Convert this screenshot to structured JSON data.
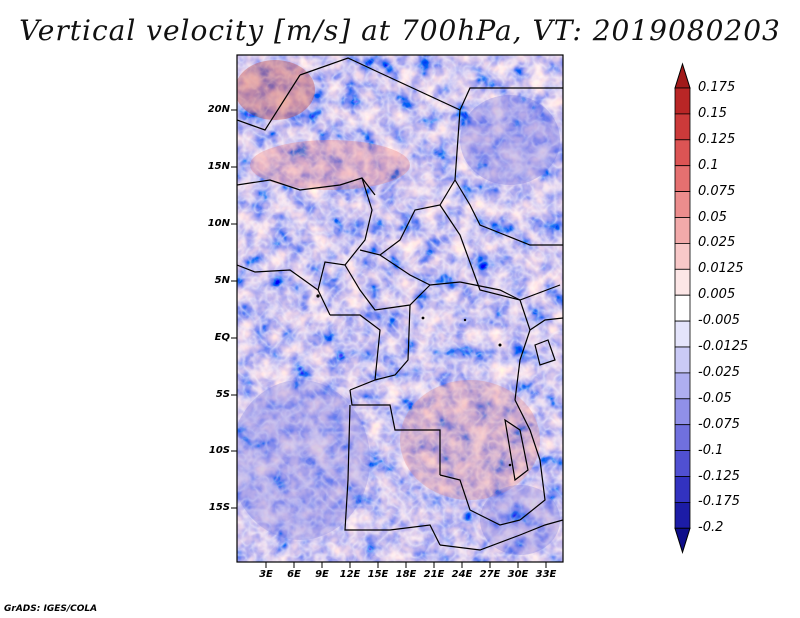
{
  "title": "Vertical velocity [m/s] at 700hPa, VT: 2019080203",
  "lat_labels": [
    "20N",
    "15N",
    "10N",
    "5N",
    "EQ",
    "5S",
    "10S",
    "15S"
  ],
  "lon_labels": [
    "3E",
    "6E",
    "9E",
    "12E",
    "15E",
    "18E",
    "21E",
    "24E",
    "27E",
    "30E",
    "33E"
  ],
  "colorbar": {
    "levels": [
      "0.175",
      "0.15",
      "0.125",
      "0.1",
      "0.075",
      "0.05",
      "0.025",
      "0.0125",
      "0.005",
      "-0.005",
      "-0.0125",
      "-0.025",
      "-0.05",
      "-0.075",
      "-0.1",
      "-0.125",
      "-0.175",
      "-0.2"
    ],
    "colors": [
      "#a11a1a",
      "#b92626",
      "#cc3a3a",
      "#dc5454",
      "#e57070",
      "#ec8d8d",
      "#f2aaaa",
      "#f8c8c8",
      "#fce6e6",
      "#ffffff",
      "#e4e4fb",
      "#cacaf6",
      "#aeaef0",
      "#9090e8",
      "#7070de",
      "#5050d2",
      "#3232c0",
      "#1c1ca6",
      "#0e0e8a"
    ]
  },
  "credit": "GrADS: IGES/COLA"
}
